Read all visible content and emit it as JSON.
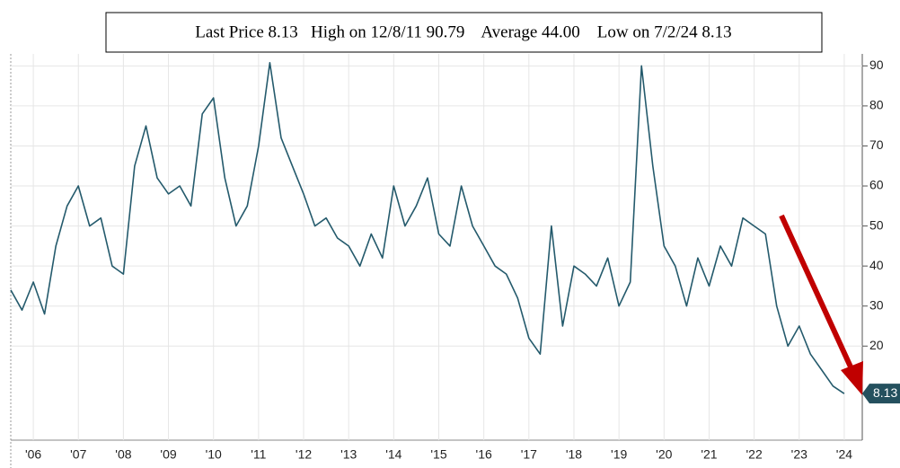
{
  "chart_data": {
    "type": "line",
    "title": "Last Price 8.13   High on 12/8/11 90.79    Average 44.00    Low on 7/2/24 8.13",
    "x": [
      2006,
      2006.25,
      2006.5,
      2006.75,
      2007,
      2007.25,
      2007.5,
      2007.75,
      2008,
      2008.25,
      2008.5,
      2008.75,
      2009,
      2009.25,
      2009.5,
      2009.75,
      2010,
      2010.25,
      2010.5,
      2010.75,
      2011,
      2011.25,
      2011.5,
      2011.75,
      2012,
      2012.25,
      2012.5,
      2012.75,
      2013,
      2013.25,
      2013.5,
      2013.75,
      2014,
      2014.25,
      2014.5,
      2014.75,
      2015,
      2015.25,
      2015.5,
      2015.75,
      2016,
      2016.25,
      2016.5,
      2016.75,
      2017,
      2017.25,
      2017.5,
      2017.75,
      2018,
      2018.25,
      2018.5,
      2018.75,
      2019,
      2019.25,
      2019.5,
      2019.75,
      2020,
      2020.25,
      2020.5,
      2020.75,
      2021,
      2021.25,
      2021.5,
      2021.75,
      2022,
      2022.25,
      2022.5,
      2022.75,
      2023,
      2023.25,
      2023.5,
      2023.75,
      2024,
      2024.25,
      2024.5
    ],
    "series": [
      {
        "color": "#245a6c",
        "values": [
          34,
          29,
          36,
          28,
          45,
          55,
          60,
          50,
          52,
          40,
          38,
          65,
          75,
          62,
          58,
          60,
          55,
          78,
          82,
          62,
          50,
          55,
          70,
          90.79,
          72,
          65,
          58,
          50,
          52,
          47,
          45,
          40,
          48,
          42,
          60,
          50,
          55,
          62,
          48,
          45,
          60,
          50,
          45,
          40,
          38,
          32,
          22,
          18,
          50,
          25,
          40,
          38,
          35,
          42,
          30,
          36,
          90,
          65,
          45,
          40,
          30,
          42,
          35,
          45,
          40,
          52,
          50,
          48,
          30,
          20,
          25,
          18,
          14,
          10,
          8.13
        ]
      }
    ],
    "xlim": [
      2006,
      2024.9
    ],
    "xticks": [
      {
        "value": 2006.5,
        "label": "'06"
      },
      {
        "value": 2007.5,
        "label": "'07"
      },
      {
        "value": 2008.5,
        "label": "'08"
      },
      {
        "value": 2009.5,
        "label": "'09"
      },
      {
        "value": 2010.5,
        "label": "'10"
      },
      {
        "value": 2011.5,
        "label": "'11"
      },
      {
        "value": 2012.5,
        "label": "'12"
      },
      {
        "value": 2013.5,
        "label": "'13"
      },
      {
        "value": 2014.5,
        "label": "'14"
      },
      {
        "value": 2015.5,
        "label": "'15"
      },
      {
        "value": 2016.5,
        "label": "'16"
      },
      {
        "value": 2017.5,
        "label": "'17"
      },
      {
        "value": 2018.5,
        "label": "'18"
      },
      {
        "value": 2019.5,
        "label": "'19"
      },
      {
        "value": 2020.5,
        "label": "'20"
      },
      {
        "value": 2021.5,
        "label": "'21"
      },
      {
        "value": 2022.5,
        "label": "'22"
      },
      {
        "value": 2023.5,
        "label": "'23"
      },
      {
        "value": 2024.5,
        "label": "'24"
      }
    ],
    "ylim": [
      -3.5,
      91.2
    ],
    "yticks": [
      20,
      30,
      40,
      50,
      60,
      70,
      80,
      90
    ],
    "grid": true
  }
}
